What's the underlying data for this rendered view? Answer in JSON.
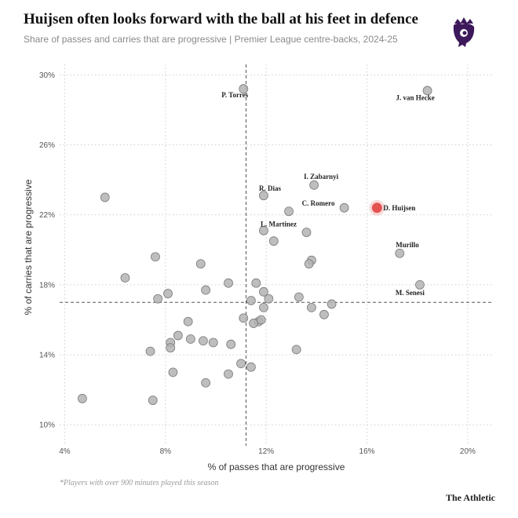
{
  "header": {
    "title": "Huijsen often looks forward with the ball at his feet in defence",
    "subtitle": "Share of passes and carries that are progressive | Premier League centre-backs, 2024-25"
  },
  "footer": {
    "note": "*Players with over 900 minutes played this season",
    "brand": "The Athletic"
  },
  "colors": {
    "highlight": "#e03a3a",
    "point": "#b3b3b3",
    "logo": "#3d195b"
  },
  "chart_data": {
    "type": "scatter",
    "xlabel": "% of passes that are progressive",
    "ylabel": "% of carries that are progressive",
    "xlim": [
      3.8,
      21
    ],
    "ylim": [
      8.8,
      30.6
    ],
    "x_ticks": [
      4,
      8,
      12,
      16,
      20
    ],
    "x_tick_labels": [
      "4%",
      "8%",
      "12%",
      "16%",
      "20%"
    ],
    "y_ticks": [
      10,
      14,
      18,
      22,
      26,
      30
    ],
    "y_tick_labels": [
      "10%",
      "14%",
      "18%",
      "22%",
      "26%",
      "30%"
    ],
    "grid": true,
    "median_lines": {
      "x": 11.2,
      "y": 17.0
    },
    "labeled_points": [
      {
        "name": "P. Torres",
        "x": 11.1,
        "y": 29.2
      },
      {
        "name": "J. van Hecke",
        "x": 18.4,
        "y": 29.1
      },
      {
        "name": "I. Zabarnyi",
        "x": 13.9,
        "y": 23.7
      },
      {
        "name": "R. Dias",
        "x": 11.9,
        "y": 23.1
      },
      {
        "name": "C. Romero",
        "x": 15.1,
        "y": 22.4
      },
      {
        "name": "D. Huijsen",
        "x": 16.4,
        "y": 22.4,
        "highlight": true
      },
      {
        "name": "L. Martinez",
        "x": 12.9,
        "y": 22.2
      },
      {
        "name": "Murillo",
        "x": 17.3,
        "y": 19.8
      },
      {
        "name": "M. Senesi",
        "x": 18.1,
        "y": 18.0
      }
    ],
    "other_points": [
      [
        5.6,
        23.0
      ],
      [
        6.4,
        18.4
      ],
      [
        7.6,
        19.6
      ],
      [
        7.7,
        17.2
      ],
      [
        8.1,
        17.5
      ],
      [
        9.4,
        19.2
      ],
      [
        9.6,
        17.7
      ],
      [
        10.5,
        18.1
      ],
      [
        11.6,
        18.1
      ],
      [
        11.9,
        17.6
      ],
      [
        12.1,
        17.2
      ],
      [
        11.4,
        17.1
      ],
      [
        11.9,
        16.7
      ],
      [
        13.3,
        17.3
      ],
      [
        13.8,
        16.7
      ],
      [
        14.3,
        16.3
      ],
      [
        14.6,
        16.9
      ],
      [
        13.8,
        19.4
      ],
      [
        13.7,
        19.2
      ],
      [
        13.6,
        21.0
      ],
      [
        11.9,
        21.1
      ],
      [
        12.3,
        20.5
      ],
      [
        11.1,
        16.1
      ],
      [
        11.7,
        15.9
      ],
      [
        11.5,
        15.8
      ],
      [
        11.8,
        16.0
      ],
      [
        8.9,
        15.9
      ],
      [
        8.5,
        15.1
      ],
      [
        8.2,
        14.7
      ],
      [
        8.2,
        14.4
      ],
      [
        9.0,
        14.9
      ],
      [
        9.5,
        14.8
      ],
      [
        9.9,
        14.7
      ],
      [
        10.6,
        14.6
      ],
      [
        7.4,
        14.2
      ],
      [
        8.3,
        13.0
      ],
      [
        11.0,
        13.5
      ],
      [
        11.4,
        13.3
      ],
      [
        10.5,
        12.9
      ],
      [
        13.2,
        14.3
      ],
      [
        9.6,
        12.4
      ],
      [
        4.7,
        11.5
      ],
      [
        7.5,
        11.4
      ]
    ]
  }
}
